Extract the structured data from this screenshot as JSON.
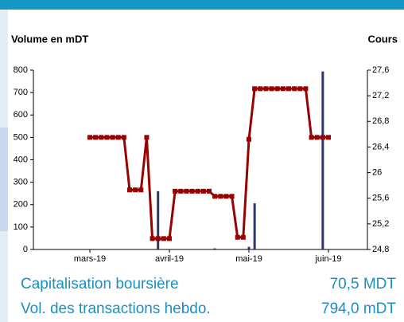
{
  "chart_data": {
    "type": "bar-line",
    "y_label": "Volume en mDT",
    "y2_label": "Cours",
    "categories": [
      "mars-19",
      null,
      null,
      null,
      null,
      null,
      null,
      null,
      null,
      null,
      null,
      null,
      null,
      null,
      "avril-19",
      null,
      null,
      null,
      null,
      null,
      null,
      null,
      null,
      null,
      null,
      null,
      null,
      null,
      "mai-19",
      null,
      null,
      null,
      null,
      null,
      null,
      null,
      null,
      null,
      null,
      null,
      null,
      null,
      "juin-19"
    ],
    "series": [
      {
        "type": "bar",
        "color": "#2b3570",
        "values": [
          null,
          null,
          null,
          null,
          null,
          null,
          null,
          null,
          null,
          null,
          null,
          null,
          260,
          null,
          null,
          null,
          null,
          null,
          null,
          null,
          null,
          null,
          5,
          null,
          null,
          null,
          null,
          null,
          12,
          206,
          null,
          null,
          null,
          null,
          null,
          null,
          null,
          null,
          null,
          null,
          null,
          794,
          null
        ]
      },
      {
        "type": "line",
        "axis": "y2",
        "color": "#990000",
        "values": [
          26.55,
          26.55,
          26.55,
          26.55,
          26.55,
          26.55,
          26.55,
          25.73,
          25.73,
          25.73,
          26.55,
          24.97,
          24.97,
          24.97,
          24.97,
          25.71,
          25.71,
          25.71,
          25.71,
          25.71,
          25.71,
          25.71,
          25.63,
          25.63,
          25.63,
          25.63,
          24.99,
          24.99,
          26.52,
          27.31,
          27.31,
          27.31,
          27.31,
          27.31,
          27.31,
          27.31,
          27.31,
          27.31,
          27.31,
          26.55,
          26.55,
          26.55,
          26.55
        ]
      }
    ],
    "ylim": [
      0,
      800
    ],
    "yticks": [
      0,
      100,
      200,
      300,
      400,
      500,
      600,
      700,
      800
    ],
    "y2lim": [
      24.8,
      27.6
    ],
    "y2ticks": [
      {
        "value": 24.8,
        "label": "24,8"
      },
      {
        "value": 25.2,
        "label": "25,2"
      },
      {
        "value": 25.6,
        "label": "25,6"
      },
      26,
      {
        "value": 26.4,
        "label": "26,4"
      },
      {
        "value": 26.8,
        "label": "26,8"
      },
      {
        "value": 27.2,
        "label": "27,2"
      },
      {
        "value": 27.6,
        "label": "27,6"
      }
    ]
  },
  "summary": [
    {
      "label": "Capitalisation boursière",
      "value": "70,5 MDT"
    },
    {
      "label": "Vol. des transactions hebdo.",
      "value": "794,0 mDT"
    }
  ]
}
